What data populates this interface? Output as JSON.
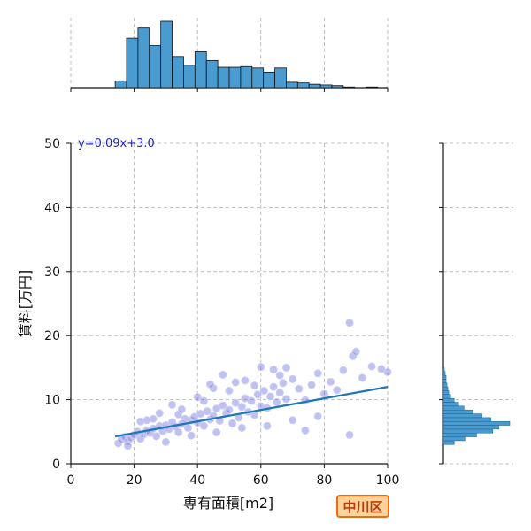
{
  "chart_data": {
    "type": "scatter",
    "xlabel": "専有面積[m2]",
    "ylabel": "賃料[万円]",
    "xlim": [
      0,
      100
    ],
    "ylim": [
      0,
      50
    ],
    "x_ticks": [
      "0",
      "20",
      "40",
      "60",
      "80",
      "100"
    ],
    "y_ticks": [
      "0",
      "10",
      "20",
      "30",
      "40",
      "50"
    ],
    "grid": true,
    "annotation": "y=0.09x+3.0",
    "regression": {
      "slope": 0.09,
      "intercept": 3.0,
      "x_range": [
        14,
        100
      ]
    },
    "scatter_points": [
      [
        15,
        3.2
      ],
      [
        16,
        3.8
      ],
      [
        17,
        4.2
      ],
      [
        18,
        3.5
      ],
      [
        19,
        4.0
      ],
      [
        20,
        4.5
      ],
      [
        21,
        5.0
      ],
      [
        22,
        3.9
      ],
      [
        23,
        4.6
      ],
      [
        24,
        5.2
      ],
      [
        25,
        4.8
      ],
      [
        26,
        5.5
      ],
      [
        27,
        4.3
      ],
      [
        28,
        5.9
      ],
      [
        29,
        5.1
      ],
      [
        30,
        6.0
      ],
      [
        31,
        5.4
      ],
      [
        32,
        6.5
      ],
      [
        33,
        5.8
      ],
      [
        34,
        4.9
      ],
      [
        35,
        6.2
      ],
      [
        36,
        7.0
      ],
      [
        37,
        5.6
      ],
      [
        38,
        6.8
      ],
      [
        39,
        7.3
      ],
      [
        40,
        6.4
      ],
      [
        41,
        7.8
      ],
      [
        42,
        5.9
      ],
      [
        43,
        8.2
      ],
      [
        44,
        6.9
      ],
      [
        45,
        7.5
      ],
      [
        46,
        8.6
      ],
      [
        47,
        6.7
      ],
      [
        48,
        9.1
      ],
      [
        49,
        7.9
      ],
      [
        50,
        8.4
      ],
      [
        51,
        6.3
      ],
      [
        52,
        9.5
      ],
      [
        53,
        7.2
      ],
      [
        54,
        8.9
      ],
      [
        55,
        10.2
      ],
      [
        56,
        8.1
      ],
      [
        57,
        9.8
      ],
      [
        58,
        7.6
      ],
      [
        59,
        10.8
      ],
      [
        60,
        9.0
      ],
      [
        61,
        11.4
      ],
      [
        62,
        8.7
      ],
      [
        63,
        10.5
      ],
      [
        64,
        12.0
      ],
      [
        65,
        9.6
      ],
      [
        66,
        11.1
      ],
      [
        67,
        12.6
      ],
      [
        68,
        10.1
      ],
      [
        70,
        13.2
      ],
      [
        72,
        11.7
      ],
      [
        74,
        9.9
      ],
      [
        76,
        12.3
      ],
      [
        78,
        14.1
      ],
      [
        80,
        10.9
      ],
      [
        82,
        12.8
      ],
      [
        84,
        11.5
      ],
      [
        86,
        14.6
      ],
      [
        88,
        4.5
      ],
      [
        88,
        22.0
      ],
      [
        89,
        16.8
      ],
      [
        90,
        17.5
      ],
      [
        92,
        13.4
      ],
      [
        95,
        15.2
      ],
      [
        98,
        14.8
      ],
      [
        100,
        14.3
      ],
      [
        18,
        2.8
      ],
      [
        22,
        6.6
      ],
      [
        26,
        7.0
      ],
      [
        30,
        3.4
      ],
      [
        34,
        7.7
      ],
      [
        38,
        4.4
      ],
      [
        42,
        9.8
      ],
      [
        46,
        4.9
      ],
      [
        50,
        11.4
      ],
      [
        54,
        5.6
      ],
      [
        58,
        12.2
      ],
      [
        62,
        5.9
      ],
      [
        66,
        13.8
      ],
      [
        70,
        6.8
      ],
      [
        74,
        5.2
      ],
      [
        78,
        7.4
      ],
      [
        45,
        11.8
      ],
      [
        55,
        13.0
      ],
      [
        60,
        15.1
      ],
      [
        48,
        13.9
      ],
      [
        52,
        12.7
      ],
      [
        35,
        8.5
      ],
      [
        28,
        7.9
      ],
      [
        24,
        6.8
      ],
      [
        32,
        9.2
      ],
      [
        40,
        10.4
      ],
      [
        44,
        12.4
      ],
      [
        64,
        14.7
      ],
      [
        68,
        15.0
      ]
    ],
    "x_histogram": [
      {
        "bin_start": 14,
        "bin_end": 17.6,
        "count": 10
      },
      {
        "bin_start": 17.6,
        "bin_end": 21.2,
        "count": 73
      },
      {
        "bin_start": 21.2,
        "bin_end": 24.8,
        "count": 88
      },
      {
        "bin_start": 24.8,
        "bin_end": 28.4,
        "count": 62
      },
      {
        "bin_start": 28.4,
        "bin_end": 32.0,
        "count": 98
      },
      {
        "bin_start": 32.0,
        "bin_end": 35.6,
        "count": 46
      },
      {
        "bin_start": 35.6,
        "bin_end": 39.2,
        "count": 33
      },
      {
        "bin_start": 39.2,
        "bin_end": 42.8,
        "count": 53
      },
      {
        "bin_start": 42.8,
        "bin_end": 46.4,
        "count": 40
      },
      {
        "bin_start": 46.4,
        "bin_end": 50.0,
        "count": 30
      },
      {
        "bin_start": 50.0,
        "bin_end": 53.6,
        "count": 30
      },
      {
        "bin_start": 53.6,
        "bin_end": 57.2,
        "count": 31
      },
      {
        "bin_start": 57.2,
        "bin_end": 60.8,
        "count": 29
      },
      {
        "bin_start": 60.8,
        "bin_end": 64.4,
        "count": 23
      },
      {
        "bin_start": 64.4,
        "bin_end": 68.0,
        "count": 29
      },
      {
        "bin_start": 68.0,
        "bin_end": 71.6,
        "count": 8
      },
      {
        "bin_start": 71.6,
        "bin_end": 75.2,
        "count": 7
      },
      {
        "bin_start": 75.2,
        "bin_end": 78.8,
        "count": 5
      },
      {
        "bin_start": 78.8,
        "bin_end": 82.4,
        "count": 4
      },
      {
        "bin_start": 82.4,
        "bin_end": 86.0,
        "count": 3
      },
      {
        "bin_start": 86.0,
        "bin_end": 89.6,
        "count": 1
      },
      {
        "bin_start": 89.6,
        "bin_end": 93.2,
        "count": 0
      },
      {
        "bin_start": 93.2,
        "bin_end": 96.8,
        "count": 1
      }
    ],
    "y_histogram": [
      {
        "bin_start": 3.0,
        "bin_end": 3.6,
        "count": 12
      },
      {
        "bin_start": 3.6,
        "bin_end": 4.2,
        "count": 24
      },
      {
        "bin_start": 4.2,
        "bin_end": 4.8,
        "count": 37
      },
      {
        "bin_start": 4.8,
        "bin_end": 5.4,
        "count": 55
      },
      {
        "bin_start": 5.4,
        "bin_end": 6.0,
        "count": 62
      },
      {
        "bin_start": 6.0,
        "bin_end": 6.6,
        "count": 74
      },
      {
        "bin_start": 6.6,
        "bin_end": 7.2,
        "count": 53
      },
      {
        "bin_start": 7.2,
        "bin_end": 7.8,
        "count": 43
      },
      {
        "bin_start": 7.8,
        "bin_end": 8.4,
        "count": 33
      },
      {
        "bin_start": 8.4,
        "bin_end": 9.0,
        "count": 23
      },
      {
        "bin_start": 9.0,
        "bin_end": 9.6,
        "count": 17
      },
      {
        "bin_start": 9.6,
        "bin_end": 10.2,
        "count": 12
      },
      {
        "bin_start": 10.2,
        "bin_end": 10.8,
        "count": 8
      },
      {
        "bin_start": 10.8,
        "bin_end": 11.4,
        "count": 6
      },
      {
        "bin_start": 11.4,
        "bin_end": 12.0,
        "count": 5
      },
      {
        "bin_start": 12.0,
        "bin_end": 12.6,
        "count": 4
      },
      {
        "bin_start": 12.6,
        "bin_end": 13.2,
        "count": 3
      },
      {
        "bin_start": 13.2,
        "bin_end": 13.8,
        "count": 3
      },
      {
        "bin_start": 13.8,
        "bin_end": 14.4,
        "count": 2
      },
      {
        "bin_start": 14.4,
        "bin_end": 15.0,
        "count": 1
      }
    ]
  },
  "badge": {
    "text": "中川区"
  },
  "colors": {
    "point_fill": "#6b6cd9",
    "point_stroke": "#c9cbf5",
    "regression": "#1f77b4",
    "histogram_fill": "#4a9bcf",
    "grid": "#b0b0b0"
  }
}
